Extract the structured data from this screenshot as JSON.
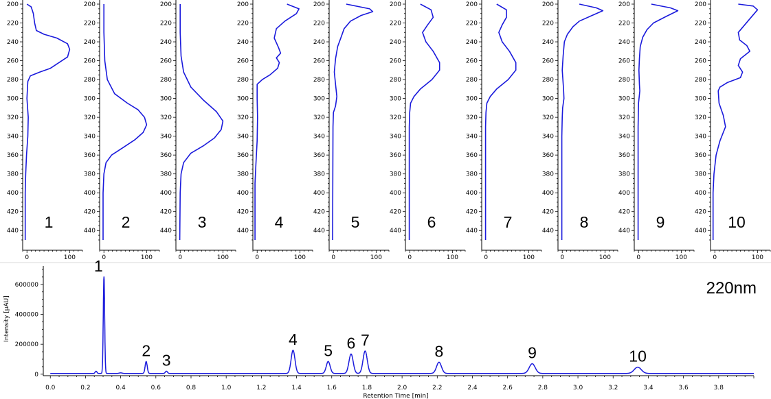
{
  "chart_data": [
    {
      "type": "line",
      "panel": "uv-spectra",
      "y_axis": {
        "range": [
          200,
          450
        ],
        "ticks": [
          200,
          220,
          240,
          260,
          280,
          300,
          320,
          340,
          360,
          380,
          400,
          420,
          440
        ],
        "reversed": true
      },
      "x_axis": {
        "range": [
          -10,
          130
        ],
        "ticks": [
          0,
          100
        ]
      },
      "series": [
        {
          "name": "1",
          "points": [
            [
              0,
              200
            ],
            [
              10,
              203
            ],
            [
              15,
              210
            ],
            [
              18,
              220
            ],
            [
              22,
              228
            ],
            [
              40,
              232
            ],
            [
              70,
              236
            ],
            [
              95,
              242
            ],
            [
              100,
              248
            ],
            [
              95,
              256
            ],
            [
              75,
              262
            ],
            [
              55,
              268
            ],
            [
              30,
              272
            ],
            [
              8,
              276
            ],
            [
              2,
              282
            ],
            [
              0,
              300
            ],
            [
              3,
              320
            ],
            [
              2,
              340
            ],
            [
              -1,
              360
            ],
            [
              -3,
              380
            ],
            [
              -4,
              400
            ],
            [
              -4,
              450
            ]
          ]
        },
        {
          "name": "2",
          "points": [
            [
              0,
              200
            ],
            [
              0,
              230
            ],
            [
              2,
              260
            ],
            [
              8,
              280
            ],
            [
              25,
              295
            ],
            [
              55,
              305
            ],
            [
              80,
              312
            ],
            [
              95,
              320
            ],
            [
              100,
              328
            ],
            [
              92,
              336
            ],
            [
              72,
              344
            ],
            [
              45,
              352
            ],
            [
              18,
              360
            ],
            [
              5,
              368
            ],
            [
              0,
              380
            ],
            [
              -2,
              400
            ],
            [
              -2,
              450
            ]
          ]
        },
        {
          "name": "3",
          "points": [
            [
              0,
              200
            ],
            [
              0,
              230
            ],
            [
              2,
              255
            ],
            [
              8,
              272
            ],
            [
              25,
              288
            ],
            [
              55,
              302
            ],
            [
              85,
              314
            ],
            [
              100,
              324
            ],
            [
              96,
              333
            ],
            [
              80,
              342
            ],
            [
              55,
              350
            ],
            [
              25,
              358
            ],
            [
              8,
              368
            ],
            [
              2,
              380
            ],
            [
              0,
              400
            ],
            [
              -1,
              450
            ]
          ]
        },
        {
          "name": "4",
          "points": [
            [
              70,
              200
            ],
            [
              98,
              205
            ],
            [
              92,
              210
            ],
            [
              65,
              218
            ],
            [
              45,
              226
            ],
            [
              40,
              236
            ],
            [
              50,
              246
            ],
            [
              55,
              252
            ],
            [
              45,
              257
            ],
            [
              52,
              262
            ],
            [
              48,
              268
            ],
            [
              30,
              275
            ],
            [
              12,
              280
            ],
            [
              0,
              285
            ],
            [
              0,
              300
            ],
            [
              1,
              320
            ],
            [
              0,
              345
            ],
            [
              -3,
              370
            ],
            [
              -5,
              390
            ],
            [
              -5,
              450
            ]
          ]
        },
        {
          "name": "5",
          "points": [
            [
              30,
              200
            ],
            [
              85,
              205
            ],
            [
              92,
              208
            ],
            [
              65,
              212
            ],
            [
              40,
              218
            ],
            [
              25,
              226
            ],
            [
              18,
              235
            ],
            [
              10,
              245
            ],
            [
              5,
              258
            ],
            [
              2,
              272
            ],
            [
              5,
              285
            ],
            [
              8,
              298
            ],
            [
              5,
              308
            ],
            [
              0,
              315
            ],
            [
              -1,
              330
            ],
            [
              -2,
              450
            ]
          ]
        },
        {
          "name": "6",
          "points": [
            [
              25,
              200
            ],
            [
              50,
              206
            ],
            [
              55,
              214
            ],
            [
              42,
              222
            ],
            [
              30,
              230
            ],
            [
              38,
              240
            ],
            [
              55,
              250
            ],
            [
              70,
              262
            ],
            [
              70,
              270
            ],
            [
              52,
              280
            ],
            [
              25,
              290
            ],
            [
              10,
              298
            ],
            [
              2,
              305
            ],
            [
              0,
              315
            ],
            [
              -1,
              330
            ],
            [
              -1,
              450
            ]
          ]
        },
        {
          "name": "7",
          "points": [
            [
              25,
              200
            ],
            [
              48,
              206
            ],
            [
              48,
              214
            ],
            [
              38,
              222
            ],
            [
              30,
              230
            ],
            [
              38,
              240
            ],
            [
              55,
              250
            ],
            [
              70,
              262
            ],
            [
              70,
              270
            ],
            [
              52,
              280
            ],
            [
              25,
              290
            ],
            [
              10,
              298
            ],
            [
              2,
              305
            ],
            [
              0,
              315
            ],
            [
              -1,
              330
            ],
            [
              -1,
              450
            ]
          ]
        },
        {
          "name": "8",
          "points": [
            [
              40,
              200
            ],
            [
              80,
              204
            ],
            [
              95,
              207
            ],
            [
              70,
              212
            ],
            [
              40,
              218
            ],
            [
              25,
              224
            ],
            [
              12,
              232
            ],
            [
              5,
              240
            ],
            [
              2,
              255
            ],
            [
              0,
              270
            ],
            [
              3,
              290
            ],
            [
              4,
              300
            ],
            [
              1,
              310
            ],
            [
              0,
              320
            ],
            [
              -1,
              340
            ],
            [
              -1,
              450
            ]
          ]
        },
        {
          "name": "9",
          "points": [
            [
              30,
              200
            ],
            [
              75,
              204
            ],
            [
              92,
              207
            ],
            [
              65,
              213
            ],
            [
              35,
              220
            ],
            [
              20,
              227
            ],
            [
              10,
              235
            ],
            [
              4,
              245
            ],
            [
              2,
              258
            ],
            [
              1,
              270
            ],
            [
              2,
              285
            ],
            [
              3,
              292
            ],
            [
              0,
              305
            ],
            [
              -1,
              330
            ],
            [
              -1,
              450
            ]
          ]
        },
        {
          "name": "10",
          "points": [
            [
              55,
              200
            ],
            [
              90,
              202
            ],
            [
              100,
              206
            ],
            [
              85,
              214
            ],
            [
              70,
              222
            ],
            [
              55,
              230
            ],
            [
              58,
              238
            ],
            [
              75,
              244
            ],
            [
              82,
              250
            ],
            [
              60,
              258
            ],
            [
              55,
              265
            ],
            [
              65,
              272
            ],
            [
              60,
              278
            ],
            [
              30,
              283
            ],
            [
              12,
              288
            ],
            [
              8,
              292
            ],
            [
              10,
              305
            ],
            [
              20,
              318
            ],
            [
              25,
              330
            ],
            [
              12,
              345
            ],
            [
              3,
              360
            ],
            [
              -2,
              380
            ],
            [
              -4,
              400
            ],
            [
              -4,
              450
            ]
          ]
        }
      ],
      "labels": [
        "1",
        "2",
        "3",
        "4",
        "5",
        "6",
        "7",
        "8",
        "9",
        "10"
      ]
    },
    {
      "type": "line",
      "panel": "chromatogram",
      "ylabel": "Intensity [µAU]",
      "xlabel": "Retention Time [min]",
      "annotation": "220nm",
      "x_axis": {
        "range": [
          -0.04,
          4.0
        ],
        "ticks": [
          0.0,
          0.2,
          0.4,
          0.6,
          0.8,
          1.0,
          1.2,
          1.4,
          1.6,
          1.8,
          2.0,
          2.2,
          2.4,
          2.6,
          2.8,
          3.0,
          3.2,
          3.4,
          3.6,
          3.8
        ]
      },
      "y_axis": {
        "range": [
          -10000,
          700000
        ],
        "ticks": [
          0,
          200000,
          400000,
          600000
        ]
      },
      "baseline": 5000,
      "peaks": [
        {
          "label": "",
          "rt": 0.26,
          "height": 15000,
          "width": 0.005
        },
        {
          "label": "1",
          "rt": 0.305,
          "height": 645000,
          "width": 0.004
        },
        {
          "label": "",
          "rt": 0.4,
          "height": 4000,
          "width": 0.008
        },
        {
          "label": "2",
          "rt": 0.545,
          "height": 80000,
          "width": 0.006
        },
        {
          "label": "3",
          "rt": 0.66,
          "height": 15000,
          "width": 0.006
        },
        {
          "label": "4",
          "rt": 1.38,
          "height": 155000,
          "width": 0.011
        },
        {
          "label": "5",
          "rt": 1.58,
          "height": 80000,
          "width": 0.011
        },
        {
          "label": "6",
          "rt": 1.71,
          "height": 130000,
          "width": 0.012
        },
        {
          "label": "7",
          "rt": 1.79,
          "height": 150000,
          "width": 0.012
        },
        {
          "label": "8",
          "rt": 2.21,
          "height": 75000,
          "width": 0.014
        },
        {
          "label": "9",
          "rt": 2.74,
          "height": 65000,
          "width": 0.017
        },
        {
          "label": "10",
          "rt": 3.34,
          "height": 42000,
          "width": 0.02
        }
      ],
      "peak_label_values": [
        "1",
        "2",
        "3",
        "4",
        "5",
        "6",
        "7",
        "8",
        "9",
        "10"
      ],
      "colors": {
        "trace": "#1a1adc",
        "axis": "#000000"
      }
    }
  ]
}
